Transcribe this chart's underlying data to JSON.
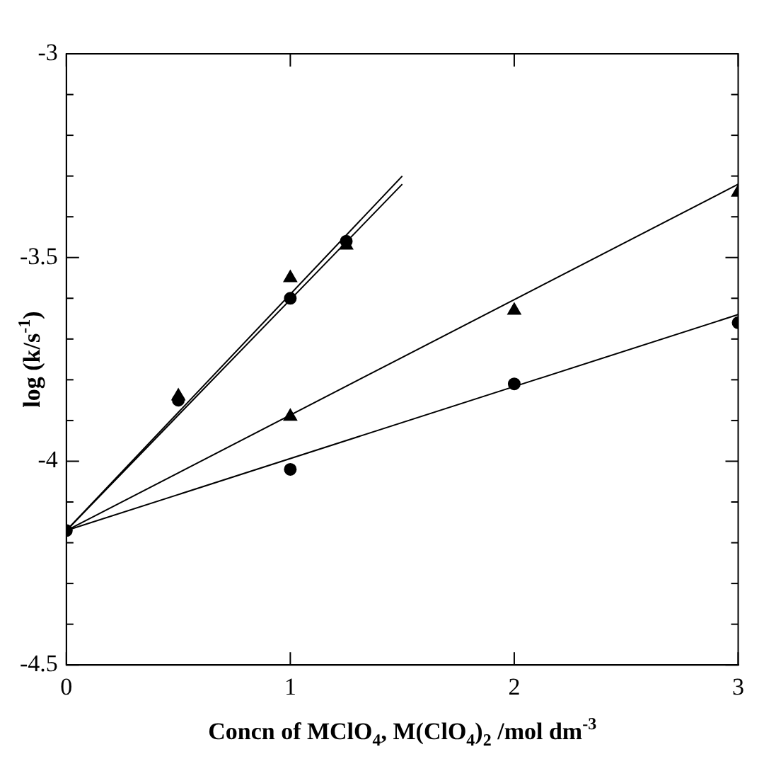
{
  "chart_data": {
    "type": "scatter",
    "xlabel": "Concn of MClO$_{4}$, M(ClO$_{4}$)$_{2}$ /mol dm$^{-3}$",
    "ylabel": "log (k/s$^{-1}$)",
    "xlim": [
      0,
      3
    ],
    "xticks": [
      0,
      1,
      2,
      3
    ],
    "ylim": [
      -4.5,
      -3
    ],
    "yticks": [
      -4.5,
      {
        "value": -4.4,
        "label": null
      },
      {
        "value": -4.3,
        "label": null
      },
      {
        "value": -4.2,
        "label": null
      },
      {
        "value": -4.1,
        "label": null
      },
      -4,
      {
        "value": -3.9,
        "label": null
      },
      {
        "value": -3.8,
        "label": null
      },
      {
        "value": -3.7,
        "label": null
      },
      {
        "value": -3.6,
        "label": null
      },
      -3.5,
      {
        "value": -3.4,
        "label": null
      },
      {
        "value": -3.3,
        "label": null
      },
      {
        "value": -3.2,
        "label": null
      },
      {
        "value": -3.1,
        "label": null
      },
      -3
    ],
    "grid": false,
    "legend": false,
    "series": [
      {
        "marker": "triangle",
        "color": "#000000",
        "x": [
          0.5,
          1,
          1.25
        ],
        "values": [
          -3.84,
          -3.55,
          -3.47
        ]
      },
      {
        "marker": "circle",
        "color": "#000000",
        "x": [
          0,
          0.5,
          1,
          1.25
        ],
        "values": [
          -4.17,
          -3.85,
          -3.6,
          -3.46
        ]
      },
      {
        "marker": "triangle",
        "color": "#000000",
        "x": [
          1,
          2,
          3
        ],
        "values": [
          -3.89,
          -3.63,
          -3.34
        ]
      },
      {
        "marker": "circle",
        "color": "#000000",
        "x": [
          1,
          2,
          3
        ],
        "values": [
          -4.02,
          -3.81,
          -3.66
        ]
      },
      {
        "type": "line",
        "color": "#000000",
        "x": [
          0,
          1.5
        ],
        "values": [
          -4.17,
          -3.3
        ]
      },
      {
        "type": "line",
        "color": "#000000",
        "x": [
          0,
          1.5
        ],
        "values": [
          -4.17,
          -3.32
        ]
      },
      {
        "type": "line",
        "color": "#000000",
        "x": [
          0,
          3
        ],
        "values": [
          -4.17,
          -3.32
        ]
      },
      {
        "type": "line",
        "color": "#000000",
        "x": [
          0,
          3
        ],
        "values": [
          -4.17,
          -3.64
        ]
      }
    ]
  }
}
